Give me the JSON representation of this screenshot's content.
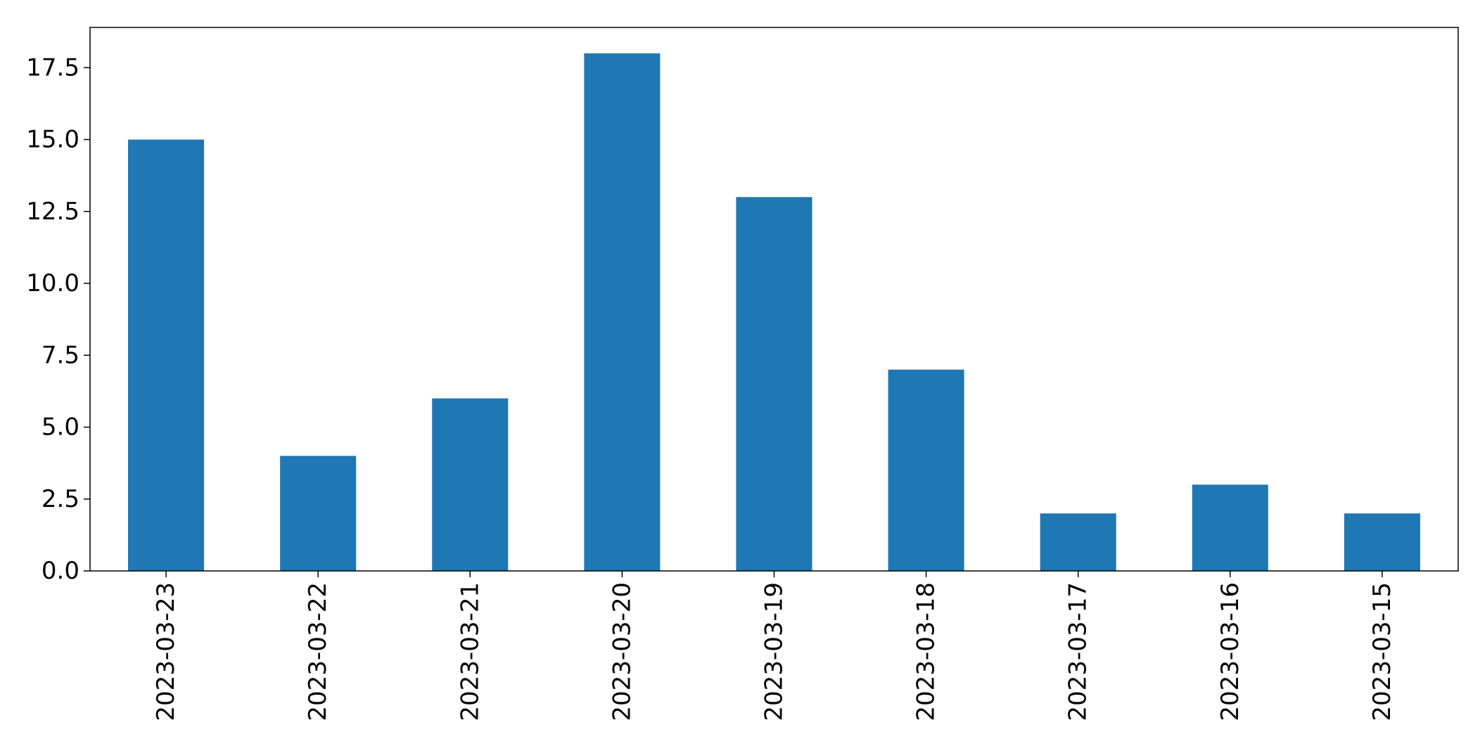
{
  "chart_data": {
    "type": "bar",
    "title": "",
    "xlabel": "",
    "ylabel": "",
    "categories": [
      "2023-03-23",
      "2023-03-22",
      "2023-03-21",
      "2023-03-20",
      "2023-03-19",
      "2023-03-18",
      "2023-03-17",
      "2023-03-16",
      "2023-03-15"
    ],
    "values": [
      15,
      4,
      6,
      18,
      13,
      7,
      2,
      3,
      2
    ],
    "ylim": [
      0,
      18.9
    ],
    "yticks": [
      "0.0",
      "2.5",
      "5.0",
      "7.5",
      "10.0",
      "12.5",
      "15.0",
      "17.5"
    ],
    "bar_color": "#1f77b4",
    "grid": false,
    "legend": "none"
  }
}
